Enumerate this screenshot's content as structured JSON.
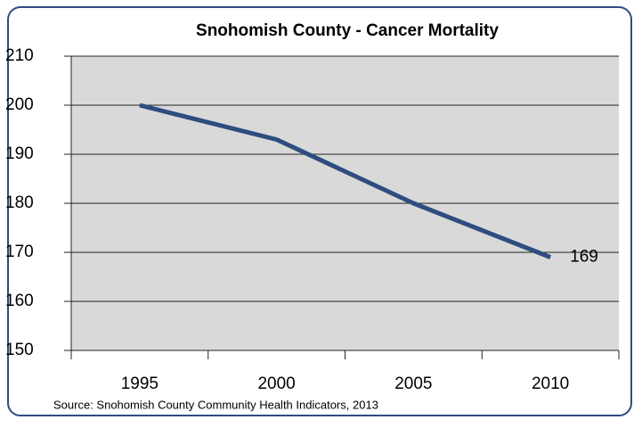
{
  "chart_data": {
    "type": "line",
    "title": "Snohomish County - Cancer Mortality",
    "categories": [
      "1995",
      "2000",
      "2005",
      "2010"
    ],
    "series": [
      {
        "name": "Cancer Mortality",
        "color": "#2e4d7f",
        "values": [
          200,
          193,
          180,
          169
        ]
      }
    ],
    "ylim": [
      150,
      210
    ],
    "yticks": [
      150,
      160,
      170,
      180,
      190,
      200,
      210
    ],
    "grid": true,
    "annotation": "Source:  Snohomish County Community Health Indicators, 2013"
  }
}
